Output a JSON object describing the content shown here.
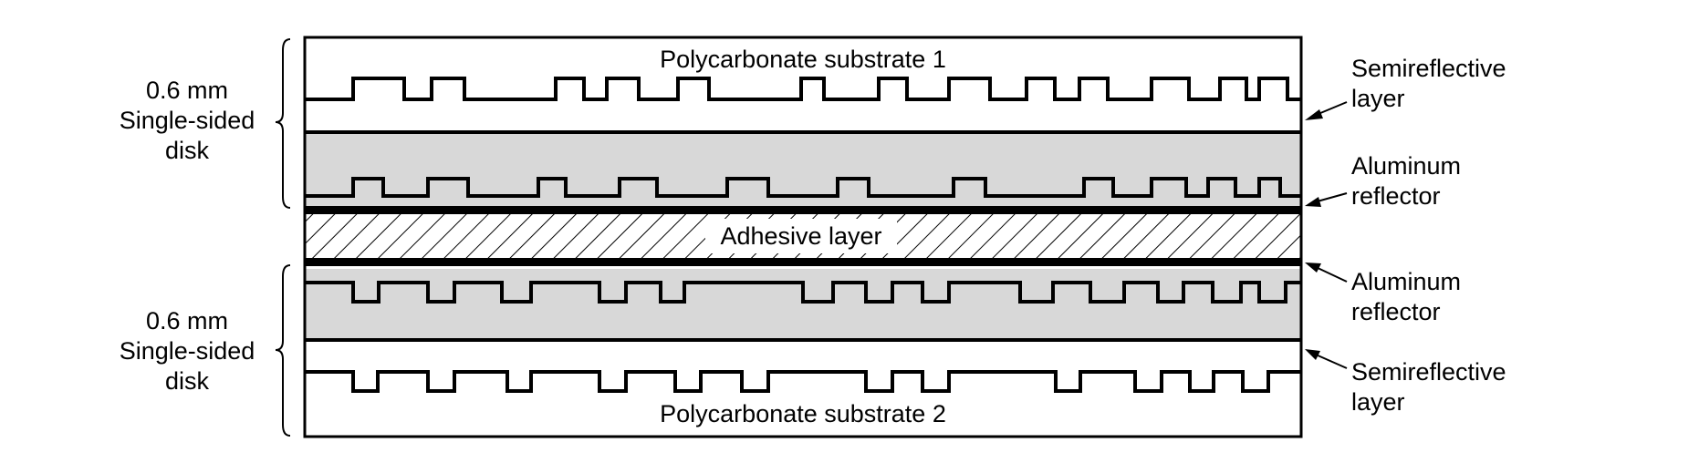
{
  "diagram": {
    "substrate_top_label": "Polycarbonate substrate 1",
    "substrate_bottom_label": "Polycarbonate substrate 2",
    "adhesive_label": "Adhesive layer",
    "left_top": {
      "line1": "0.6 mm",
      "line2": "Single-sided",
      "line3": "disk"
    },
    "left_bottom": {
      "line1": "0.6 mm",
      "line2": "Single-sided",
      "line3": "disk"
    },
    "right_labels": [
      {
        "line1": "Semireflective",
        "line2": "layer"
      },
      {
        "line1": "Aluminum",
        "line2": "reflector"
      },
      {
        "line1": "Aluminum",
        "line2": "reflector"
      },
      {
        "line1": "Semireflective",
        "line2": "layer"
      }
    ],
    "colors": {
      "fill_gray": "#d8d8d8",
      "ink": "#000000"
    }
  }
}
